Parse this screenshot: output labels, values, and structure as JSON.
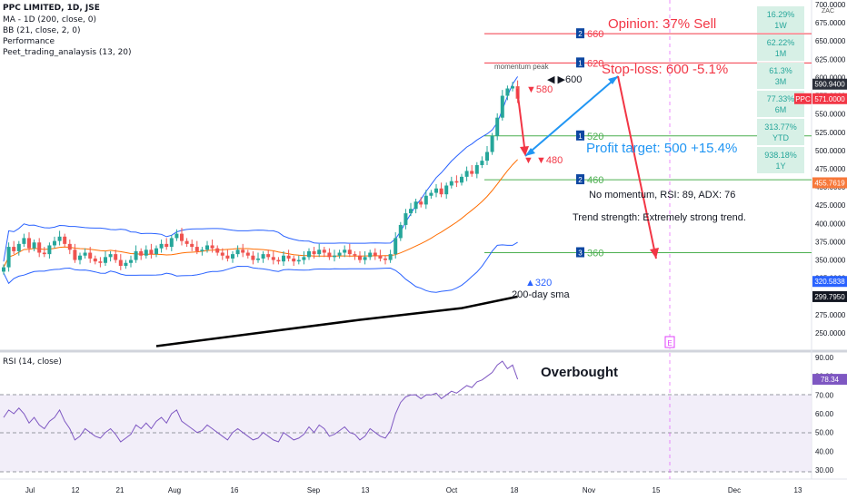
{
  "header": {
    "symbol": "PPC LIMITED, 1D, JSE",
    "indicators": [
      "MA - 1D (200, close, 0)",
      "BB (21, close, 2, 0)",
      "Performance",
      "Peet_trading_analaysis (13, 20)"
    ]
  },
  "price_axis": {
    "currency": "ZAC",
    "ticks": [
      "700.0000",
      "675.0000",
      "650.0000",
      "625.0000",
      "600.0000",
      "575.0000",
      "550.0000",
      "525.0000",
      "500.0000",
      "475.0000",
      "450.0000",
      "425.0000",
      "400.0000",
      "375.0000",
      "350.0000",
      "325.0000",
      "300.0000",
      "275.0000",
      "250.0000"
    ],
    "badges": [
      {
        "label": "590.9400",
        "value": 590.94,
        "color": "#2a2e39"
      },
      {
        "label": "571.0000",
        "value": 571.0,
        "color": "#f23645"
      },
      {
        "label": "455.7619",
        "value": 455.76,
        "color": "#f7783a"
      },
      {
        "label": "320.5838",
        "value": 320.58,
        "color": "#2962ff"
      },
      {
        "label": "299.7950",
        "value": 299.8,
        "color": "#131722"
      }
    ],
    "symbol_tag": "PPC"
  },
  "rsi_axis": {
    "ticks": [
      "90.00",
      "80.00",
      "70.00",
      "60.00",
      "50.00",
      "40.00",
      "30.00"
    ],
    "badge": "78.34",
    "title": "RSI (14, close)",
    "overbought_label": "Overbought"
  },
  "time_axis": {
    "ticks": [
      "Jul",
      "12",
      "21",
      "Aug",
      "16",
      "Sep",
      "13",
      "Oct",
      "18",
      "Nov",
      "15",
      "Dec",
      "13"
    ]
  },
  "performance": [
    {
      "value": "16.29%",
      "period": "1W"
    },
    {
      "value": "62.22%",
      "period": "1M"
    },
    {
      "value": "61.3%",
      "period": "3M"
    },
    {
      "value": "77.33%",
      "period": "6M"
    },
    {
      "value": "313.77%",
      "period": "YTD"
    },
    {
      "value": "938.18%",
      "period": "1Y"
    }
  ],
  "annotations": {
    "opinion": "Opinion: 37% Sell",
    "stop_loss": "Stop-loss: 600 -5.1%",
    "profit_target": "Profit target: 500 +15.4%",
    "no_momentum": "No momentum, RSI: 89, ADX: 76",
    "trend_strength": "Trend strength: Extremely strong trend.",
    "momentum_peak": "momentum peak",
    "sma_label": "200-day sma",
    "e_marker": "E",
    "peak_label": "◀ ▶600",
    "level_580": "▼580",
    "level_480": "▼ ▼480",
    "level_320": "▲320"
  },
  "levels": [
    {
      "num": "2",
      "label": "660",
      "value": 660,
      "color": "#f23645"
    },
    {
      "num": "1",
      "label": "620",
      "value": 620,
      "color": "#f23645"
    },
    {
      "num": "1",
      "label": "520",
      "value": 520,
      "color": "#4caf50"
    },
    {
      "num": "2",
      "label": "460",
      "value": 460,
      "color": "#4caf50"
    },
    {
      "num": "3",
      "label": "360",
      "value": 360,
      "color": "#4caf50"
    }
  ],
  "chart_data": {
    "type": "candlestick",
    "title": "PPC LIMITED, 1D, JSE",
    "price_range": [
      235,
      705
    ],
    "rsi_range": [
      25,
      95
    ],
    "close": [
      340,
      368,
      362,
      372,
      380,
      366,
      374,
      360,
      358,
      370,
      376,
      382,
      372,
      364,
      350,
      356,
      360,
      352,
      348,
      346,
      354,
      358,
      350,
      342,
      346,
      350,
      362,
      356,
      364,
      358,
      366,
      372,
      368,
      380,
      386,
      376,
      372,
      368,
      362,
      364,
      370,
      366,
      360,
      356,
      352,
      358,
      364,
      360,
      356,
      350,
      352,
      358,
      354,
      350,
      348,
      356,
      352,
      348,
      350,
      354,
      362,
      358,
      364,
      360,
      354,
      356,
      360,
      364,
      358,
      356,
      350,
      354,
      360,
      356,
      352,
      350,
      358,
      380,
      398,
      414,
      420,
      430,
      426,
      438,
      442,
      448,
      440,
      452,
      458,
      456,
      464,
      472,
      468,
      480,
      486,
      498,
      520,
      545,
      575,
      585,
      588,
      571
    ],
    "rsi": [
      58,
      62,
      60,
      63,
      60,
      55,
      58,
      54,
      52,
      56,
      58,
      62,
      56,
      52,
      46,
      48,
      52,
      50,
      48,
      47,
      50,
      52,
      49,
      45,
      47,
      49,
      54,
      52,
      55,
      52,
      56,
      58,
      55,
      60,
      62,
      56,
      54,
      52,
      50,
      51,
      54,
      52,
      50,
      48,
      46,
      50,
      52,
      50,
      48,
      46,
      47,
      50,
      48,
      46,
      45,
      50,
      48,
      46,
      47,
      49,
      53,
      50,
      54,
      52,
      48,
      49,
      51,
      53,
      50,
      49,
      46,
      48,
      52,
      50,
      48,
      47,
      51,
      60,
      66,
      69,
      70,
      70,
      68,
      70,
      70,
      71,
      68,
      70,
      72,
      71,
      73,
      75,
      74,
      77,
      78,
      80,
      82,
      86,
      88,
      84,
      86,
      78.34
    ],
    "ma200": [
      {
        "bar": 30,
        "value": 232
      },
      {
        "bar": 50,
        "value": 250
      },
      {
        "bar": 70,
        "value": 268
      },
      {
        "bar": 90,
        "value": 284
      },
      {
        "bar": 101,
        "value": 299.8
      }
    ],
    "bollinger": {
      "upper_last": 590.94,
      "middle_last": 455.76,
      "lower_last": 320.58
    }
  }
}
